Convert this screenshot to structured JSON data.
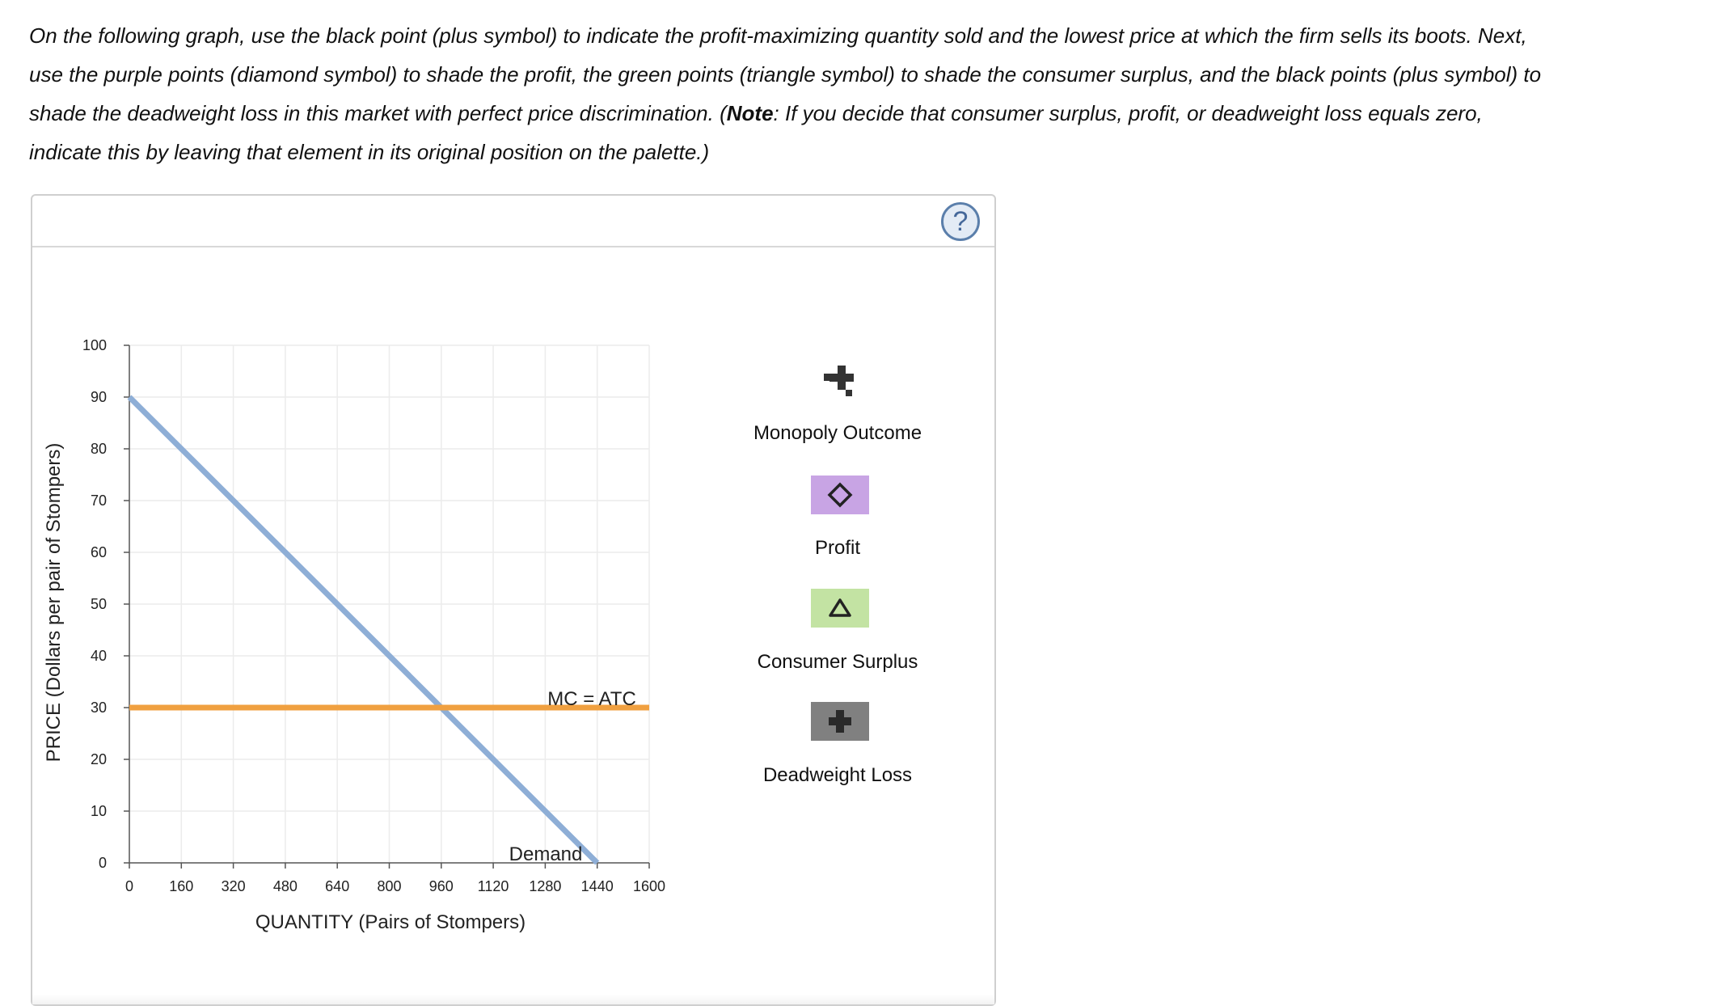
{
  "instructions": {
    "part1": "On the following graph, use the black point (plus symbol) to indicate the profit-maximizing quantity sold and the lowest price at which the firm sells its boots. Next, use the purple points (diamond symbol) to shade the profit, the green points (triangle symbol) to shade the consumer surplus, and the black points (plus symbol) to shade the deadweight loss in this market with perfect price discrimination. (",
    "note_label": "Note",
    "part2": ": If you decide that consumer surplus, profit, or deadweight loss equals zero, indicate this by leaving that element in its original position on the palette.)"
  },
  "help_button": {
    "label": "?"
  },
  "chart_data": {
    "type": "line",
    "xlabel": "QUANTITY (Pairs of Stompers)",
    "ylabel": "PRICE (Dollars per pair of Stompers)",
    "xlim": [
      0,
      1600
    ],
    "ylim": [
      0,
      100
    ],
    "xticks": [
      0,
      160,
      320,
      480,
      640,
      800,
      960,
      1120,
      1280,
      1440,
      1600
    ],
    "yticks": [
      0,
      10,
      20,
      30,
      40,
      50,
      60,
      70,
      80,
      90,
      100
    ],
    "grid": true,
    "series": [
      {
        "name": "Demand",
        "color": "#8eaed6",
        "points": [
          [
            0,
            90
          ],
          [
            1440,
            0
          ]
        ]
      },
      {
        "name": "MC = ATC",
        "color": "#f0a040",
        "points": [
          [
            0,
            30
          ],
          [
            1600,
            30
          ]
        ]
      }
    ]
  },
  "palette": {
    "items": [
      {
        "label": "Monopoly Outcome",
        "icon": "plus-point-icon",
        "color": "#333333"
      },
      {
        "label": "Profit",
        "icon": "diamond-icon",
        "color": "#c8a4e4"
      },
      {
        "label": "Consumer Surplus",
        "icon": "triangle-icon",
        "color": "#c3e3a3"
      },
      {
        "label": "Deadweight Loss",
        "icon": "plus-icon",
        "color": "#808080"
      }
    ]
  }
}
